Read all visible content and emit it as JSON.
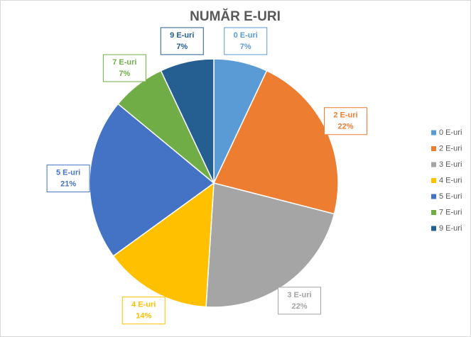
{
  "chart_data": {
    "type": "pie",
    "title": "NUMĂR E-URI",
    "categories": [
      "0 E-uri",
      "2 E-uri",
      "3 E-uri",
      "4 E-uri",
      "5 E-uri",
      "7 E-uri",
      "9 E-uri"
    ],
    "values": [
      7,
      22,
      22,
      14,
      21,
      7,
      7
    ],
    "value_labels": [
      "7%",
      "22%",
      "22%",
      "14%",
      "21%",
      "7%",
      "7%"
    ],
    "colors": [
      "#5b9bd5",
      "#ed7d31",
      "#a5a5a5",
      "#ffc000",
      "#4472c4",
      "#70ad47",
      "#255e91"
    ],
    "legend": "right"
  }
}
